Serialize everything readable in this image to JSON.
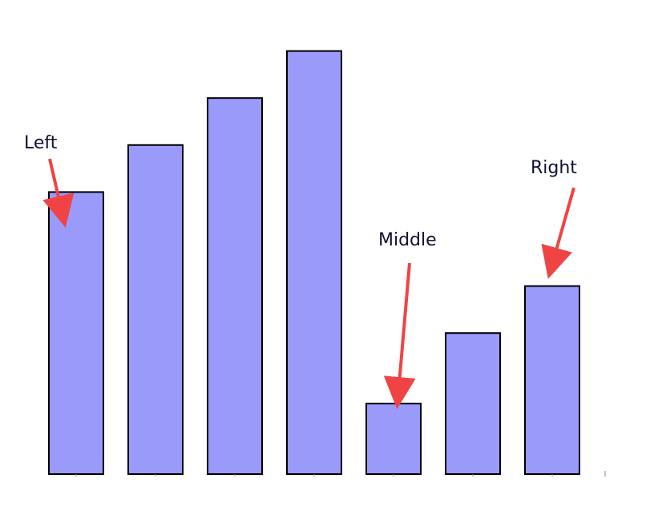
{
  "chart_data": {
    "type": "bar",
    "values": [
      6.0,
      7.0,
      8.0,
      9.0,
      1.5,
      3.0,
      4.0
    ],
    "ylim": [
      0,
      10
    ],
    "bar_color": "#9a9afa",
    "bar_edge_color": "#000000",
    "grid": false,
    "axes_visible": false,
    "annotations": [
      {
        "text": "Left",
        "target_index": 0,
        "color": "#f04444"
      },
      {
        "text": "Middle",
        "target_index": 4,
        "color": "#f04444"
      },
      {
        "text": "Right",
        "target_index": 6,
        "color": "#f04444"
      }
    ]
  }
}
